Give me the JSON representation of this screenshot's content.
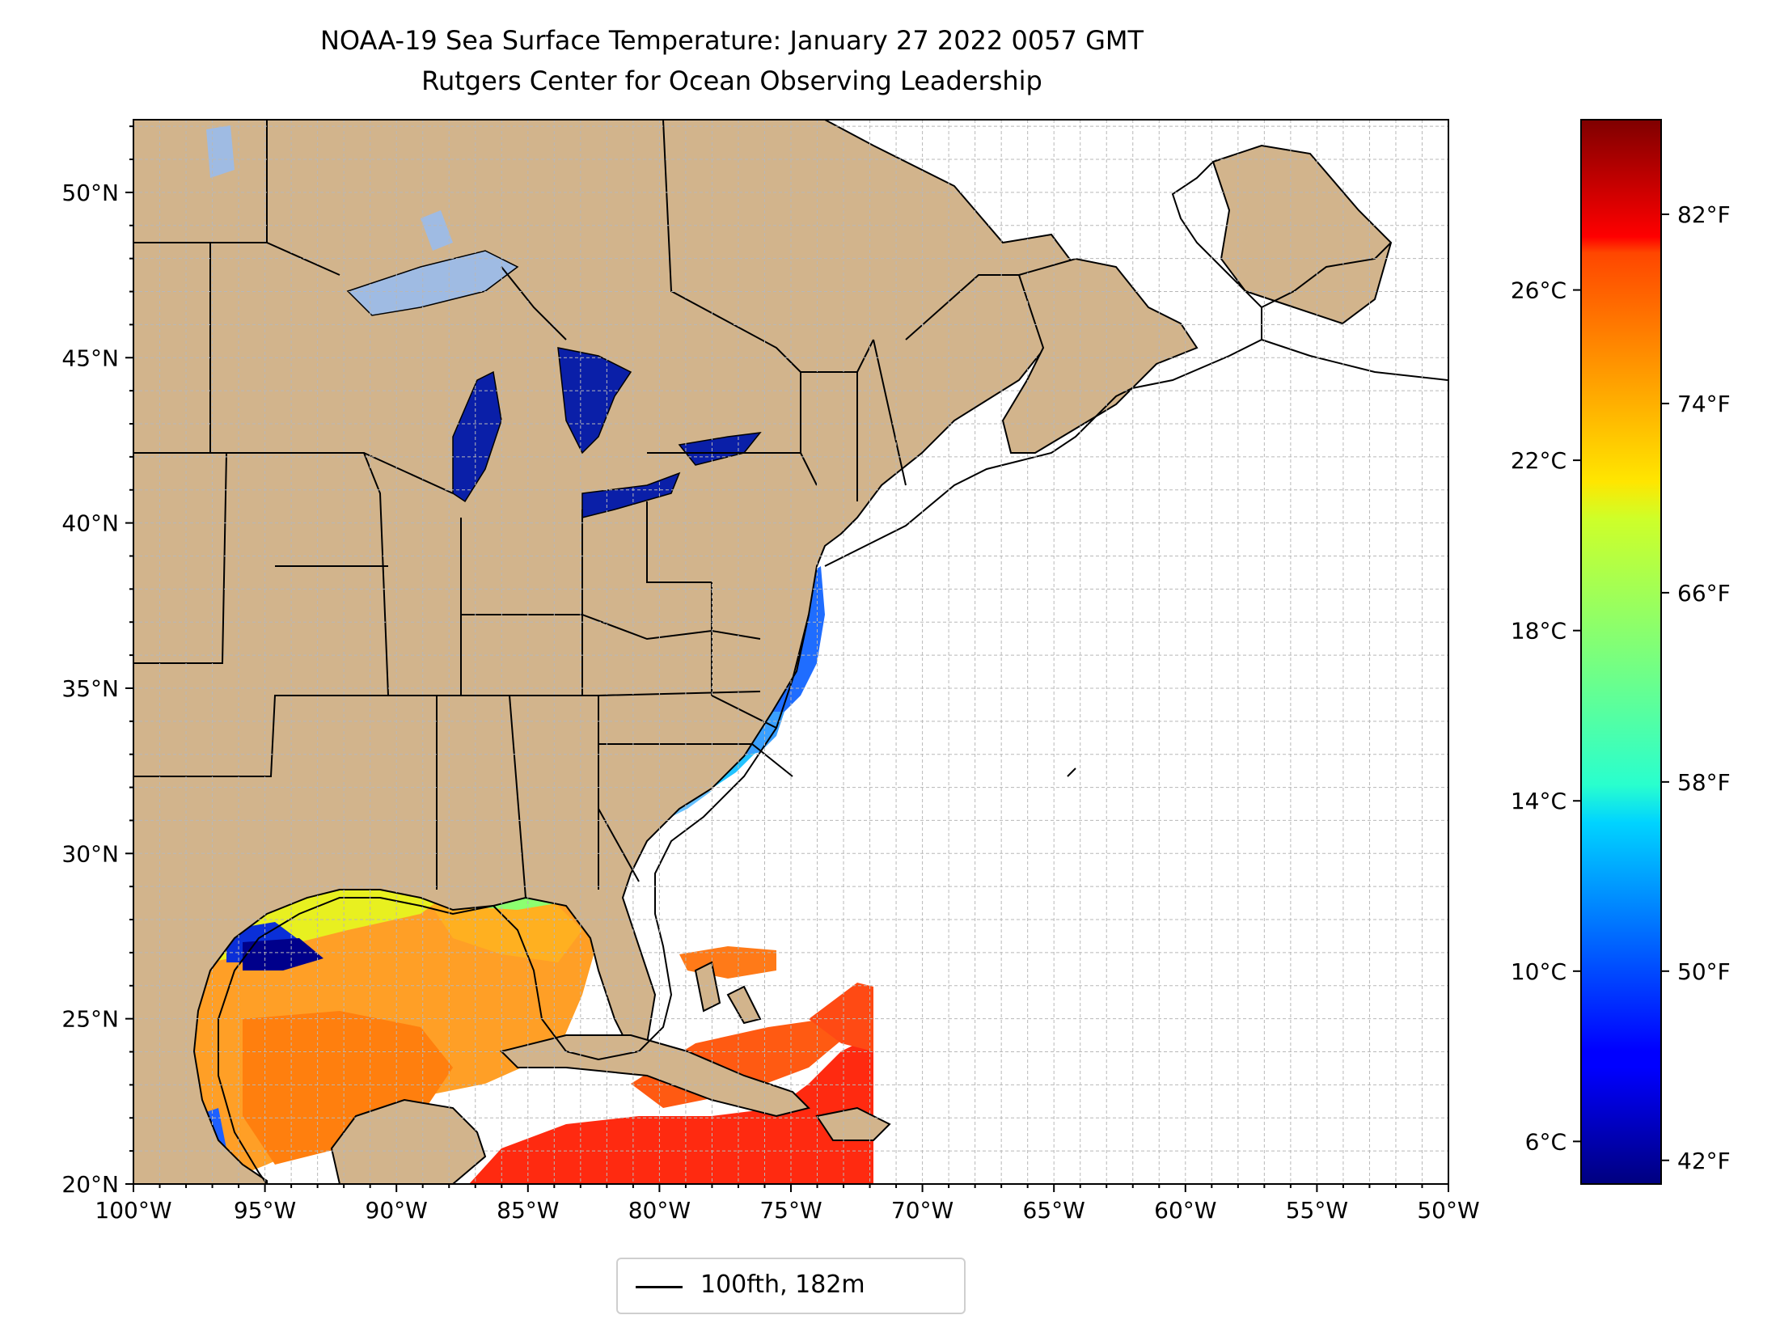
{
  "title": "NOAA-19 Sea Surface Temperature: January 27 2022 0057 GMT",
  "subtitle": "Rutgers Center for Ocean Observing Leadership",
  "colors": {
    "land": "#d2b48c",
    "ocean_no_data": "#ffffff",
    "lakes": "#9fbbe3",
    "border": "#000000",
    "grid": "#b8b8b8"
  },
  "map": {
    "lon_range": [
      -100,
      -50
    ],
    "lat_range": [
      20,
      52.2
    ],
    "lon_ticks": [
      {
        "value": -100,
        "label": "100°W"
      },
      {
        "value": -95,
        "label": "95°W"
      },
      {
        "value": -90,
        "label": "90°W"
      },
      {
        "value": -85,
        "label": "85°W"
      },
      {
        "value": -80,
        "label": "80°W"
      },
      {
        "value": -75,
        "label": "75°W"
      },
      {
        "value": -70,
        "label": "70°W"
      },
      {
        "value": -65,
        "label": "65°W"
      },
      {
        "value": -60,
        "label": "60°W"
      },
      {
        "value": -55,
        "label": "55°W"
      },
      {
        "value": -50,
        "label": "50°W"
      }
    ],
    "lat_ticks": [
      {
        "value": 20,
        "label": "20°N"
      },
      {
        "value": 25,
        "label": "25°N"
      },
      {
        "value": 30,
        "label": "30°N"
      },
      {
        "value": 35,
        "label": "35°N"
      },
      {
        "value": 40,
        "label": "40°N"
      },
      {
        "value": 45,
        "label": "45°N"
      },
      {
        "value": 50,
        "label": "50°N"
      }
    ]
  },
  "colorbar": {
    "colormap": "jet",
    "range_c": [
      5,
      30
    ],
    "celsius_ticks": [
      {
        "value": 6,
        "label": "6°C"
      },
      {
        "value": 10,
        "label": "10°C"
      },
      {
        "value": 14,
        "label": "14°C"
      },
      {
        "value": 18,
        "label": "18°C"
      },
      {
        "value": 22,
        "label": "22°C"
      },
      {
        "value": 26,
        "label": "26°C"
      }
    ],
    "fahrenheit_ticks": [
      {
        "value": 42,
        "label": "42°F"
      },
      {
        "value": 50,
        "label": "50°F"
      },
      {
        "value": 58,
        "label": "58°F"
      },
      {
        "value": 66,
        "label": "66°F"
      },
      {
        "value": 74,
        "label": "74°F"
      },
      {
        "value": 82,
        "label": "82°F"
      }
    ]
  },
  "legend": {
    "label": "100fth, 182m"
  }
}
